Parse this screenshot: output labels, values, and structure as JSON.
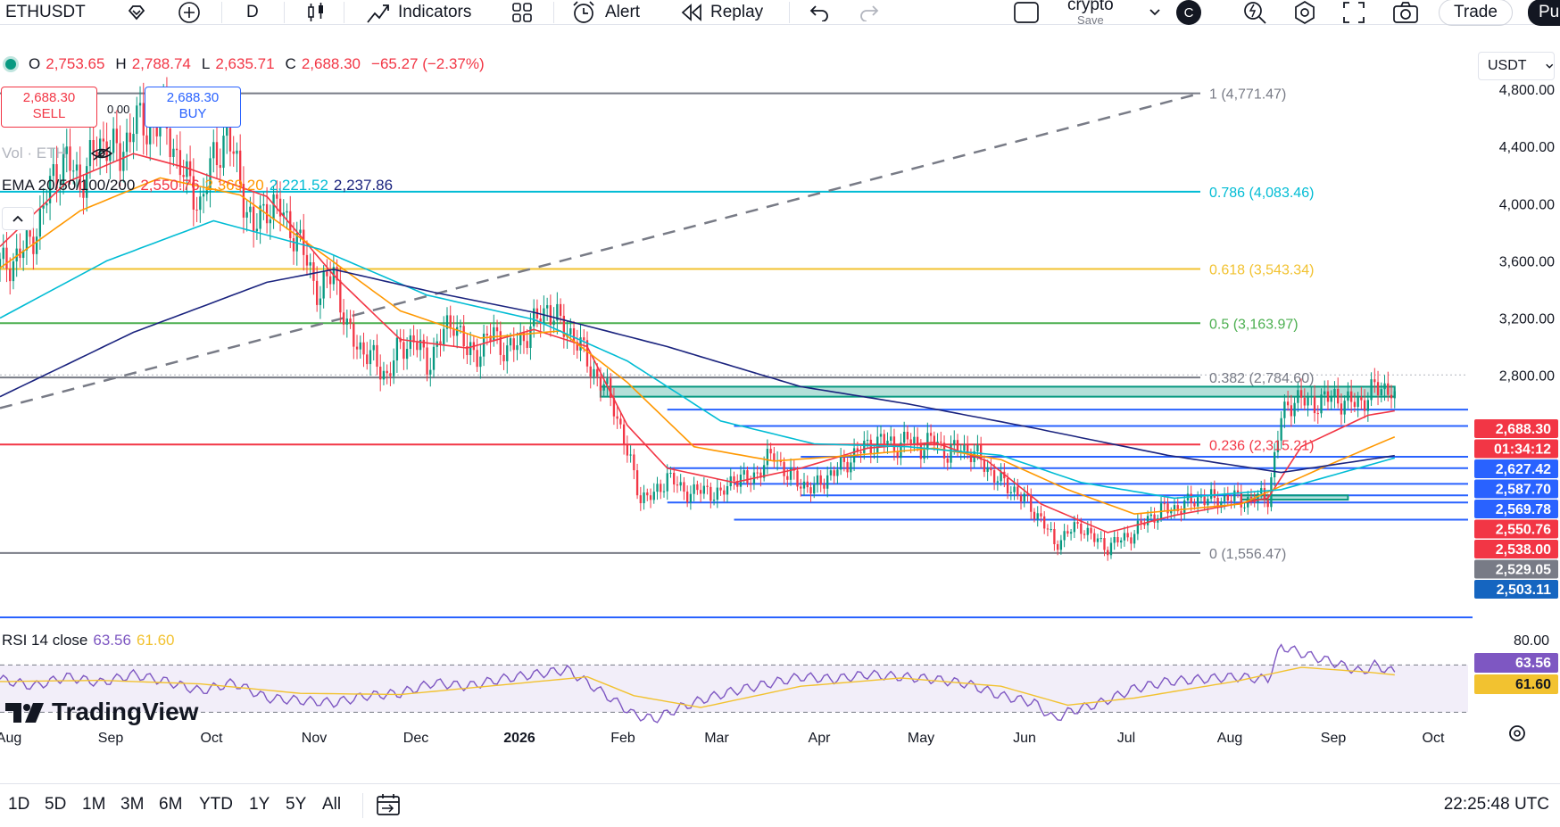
{
  "toolbar": {
    "symbol": "ETHUSDT",
    "interval": "D",
    "indicators_label": "Indicators",
    "alert_label": "Alert",
    "replay_label": "Replay",
    "layout_name": "crypto",
    "layout_status": "Save",
    "avatar_letter": "C",
    "trade_label": "Trade",
    "publish_label": "Pu"
  },
  "legend": {
    "ohlc": [
      {
        "key": "O",
        "value": "2,753.65"
      },
      {
        "key": "H",
        "value": "2,788.74"
      },
      {
        "key": "L",
        "value": "2,635.71"
      },
      {
        "key": "C",
        "value": "2,688.30"
      }
    ],
    "change": "−65.27 (−2.37%)",
    "vol_label": "Vol · ETH",
    "ema_label": "EMA 20/50/100/200",
    "ema_values": [
      {
        "value": "2,550.76",
        "color": "#f23645"
      },
      {
        "value": "2,369.20",
        "color": "#ff9800"
      },
      {
        "value": "2,221.52",
        "color": "#00bcd4"
      },
      {
        "value": "2,237.86",
        "color": "#1a237e"
      }
    ],
    "rsi_label": "RSI 14 close",
    "rsi_values": [
      {
        "value": "63.56",
        "color": "#7e57c2"
      },
      {
        "value": "61.60",
        "color": "#f2c230"
      }
    ]
  },
  "orders": {
    "sell_price": "2,688.30",
    "sell_label": "SELL",
    "spread": "0.00",
    "buy_price": "2,688.30",
    "buy_label": "BUY"
  },
  "currency": "USDT",
  "chart_data": {
    "type": "candlestick",
    "symbol": "ETHUSDT",
    "interval": "D",
    "y_axis": {
      "ticks": [
        4800,
        4400,
        4000,
        3600,
        3200,
        2800
      ],
      "tick_labels": [
        "4,800.00",
        "4,400.00",
        "4,000.00",
        "3,600.00",
        "3,200.00",
        "2,800.00"
      ],
      "range": [
        1400,
        4900
      ]
    },
    "x_axis": {
      "labels": [
        "Aug",
        "Sep",
        "Oct",
        "Nov",
        "Dec",
        "2026",
        "Feb",
        "Mar",
        "Apr",
        "May",
        "Jun",
        "Jul",
        "Aug",
        "Sep",
        "Oct"
      ]
    },
    "close_path": [
      [
        0,
        3560
      ],
      [
        4,
        3600
      ],
      [
        8,
        3700
      ],
      [
        12,
        3880
      ],
      [
        16,
        4200
      ],
      [
        20,
        4300
      ],
      [
        24,
        4150
      ],
      [
        28,
        4350
      ],
      [
        32,
        4450
      ],
      [
        36,
        4300
      ],
      [
        40,
        4600
      ],
      [
        44,
        4500
      ],
      [
        48,
        4620
      ],
      [
        52,
        4400
      ],
      [
        56,
        4150
      ],
      [
        60,
        4000
      ],
      [
        64,
        4300
      ],
      [
        68,
        4500
      ],
      [
        72,
        4150
      ],
      [
        76,
        3800
      ],
      [
        80,
        4000
      ],
      [
        84,
        3950
      ],
      [
        88,
        3800
      ],
      [
        92,
        3600
      ],
      [
        96,
        3350
      ],
      [
        100,
        3550
      ],
      [
        104,
        3100
      ],
      [
        108,
        3000
      ],
      [
        112,
        2900
      ],
      [
        116,
        2800
      ],
      [
        120,
        3000
      ],
      [
        124,
        3050
      ],
      [
        128,
        2880
      ],
      [
        132,
        3050
      ],
      [
        136,
        3200
      ],
      [
        140,
        2950
      ],
      [
        144,
        2980
      ],
      [
        148,
        3100
      ],
      [
        152,
        2950
      ],
      [
        156,
        3050
      ],
      [
        160,
        3150
      ],
      [
        164,
        3280
      ],
      [
        168,
        3150
      ],
      [
        172,
        3080
      ],
      [
        176,
        2900
      ],
      [
        180,
        2750
      ],
      [
        184,
        2600
      ],
      [
        188,
        2250
      ],
      [
        192,
        1950
      ],
      [
        196,
        1950
      ],
      [
        200,
        2100
      ],
      [
        204,
        2000
      ],
      [
        208,
        1980
      ],
      [
        212,
        2000
      ],
      [
        216,
        1950
      ],
      [
        220,
        2100
      ],
      [
        224,
        2050
      ],
      [
        228,
        2150
      ],
      [
        232,
        2250
      ],
      [
        236,
        2100
      ],
      [
        240,
        2050
      ],
      [
        244,
        2000
      ],
      [
        248,
        2100
      ],
      [
        252,
        2150
      ],
      [
        256,
        2250
      ],
      [
        260,
        2300
      ],
      [
        264,
        2350
      ],
      [
        268,
        2300
      ],
      [
        272,
        2350
      ],
      [
        276,
        2300
      ],
      [
        280,
        2350
      ],
      [
        284,
        2250
      ],
      [
        288,
        2300
      ],
      [
        292,
        2250
      ],
      [
        296,
        2150
      ],
      [
        300,
        2050
      ],
      [
        304,
        2000
      ],
      [
        308,
        1900
      ],
      [
        312,
        1800
      ],
      [
        316,
        1620
      ],
      [
        320,
        1700
      ],
      [
        324,
        1750
      ],
      [
        328,
        1650
      ],
      [
        332,
        1600
      ],
      [
        336,
        1650
      ],
      [
        340,
        1700
      ],
      [
        344,
        1800
      ],
      [
        348,
        1850
      ],
      [
        352,
        1870
      ],
      [
        356,
        1900
      ],
      [
        360,
        1950
      ],
      [
        364,
        1920
      ],
      [
        368,
        1950
      ],
      [
        372,
        1920
      ],
      [
        376,
        1940
      ],
      [
        380,
        1950
      ],
      [
        384,
        2500
      ],
      [
        388,
        2650
      ],
      [
        392,
        2600
      ],
      [
        396,
        2620
      ],
      [
        400,
        2650
      ],
      [
        404,
        2600
      ],
      [
        408,
        2620
      ],
      [
        412,
        2700
      ],
      [
        416,
        2720
      ],
      [
        418,
        2688.3
      ]
    ],
    "ema": [
      {
        "name": "EMA 20",
        "color": "#f23645",
        "points": [
          [
            0,
            3700
          ],
          [
            20,
            4150
          ],
          [
            40,
            4350
          ],
          [
            56,
            4250
          ],
          [
            80,
            4050
          ],
          [
            100,
            3500
          ],
          [
            120,
            3050
          ],
          [
            140,
            2990
          ],
          [
            160,
            3120
          ],
          [
            176,
            3000
          ],
          [
            188,
            2450
          ],
          [
            200,
            2150
          ],
          [
            220,
            2050
          ],
          [
            240,
            2150
          ],
          [
            260,
            2290
          ],
          [
            280,
            2330
          ],
          [
            296,
            2200
          ],
          [
            312,
            1900
          ],
          [
            332,
            1700
          ],
          [
            352,
            1820
          ],
          [
            380,
            1940
          ],
          [
            390,
            2300
          ],
          [
            410,
            2520
          ],
          [
            418,
            2550.76
          ]
        ]
      },
      {
        "name": "EMA 50",
        "color": "#ff9800",
        "points": [
          [
            0,
            3550
          ],
          [
            24,
            3950
          ],
          [
            48,
            4180
          ],
          [
            72,
            4060
          ],
          [
            96,
            3660
          ],
          [
            120,
            3250
          ],
          [
            144,
            3060
          ],
          [
            168,
            3110
          ],
          [
            188,
            2750
          ],
          [
            208,
            2300
          ],
          [
            232,
            2200
          ],
          [
            256,
            2240
          ],
          [
            280,
            2290
          ],
          [
            300,
            2210
          ],
          [
            320,
            2000
          ],
          [
            340,
            1830
          ],
          [
            372,
            1900
          ],
          [
            396,
            2150
          ],
          [
            418,
            2369.2
          ]
        ]
      },
      {
        "name": "EMA 100",
        "color": "#00bcd4",
        "points": [
          [
            0,
            3200
          ],
          [
            32,
            3600
          ],
          [
            64,
            3880
          ],
          [
            96,
            3680
          ],
          [
            128,
            3360
          ],
          [
            160,
            3190
          ],
          [
            188,
            2900
          ],
          [
            216,
            2480
          ],
          [
            244,
            2320
          ],
          [
            272,
            2300
          ],
          [
            300,
            2240
          ],
          [
            324,
            2050
          ],
          [
            352,
            1940
          ],
          [
            384,
            2000
          ],
          [
            418,
            2221.52
          ]
        ]
      },
      {
        "name": "EMA 200",
        "color": "#1a237e",
        "points": [
          [
            0,
            2650
          ],
          [
            40,
            3100
          ],
          [
            80,
            3450
          ],
          [
            100,
            3540
          ],
          [
            130,
            3380
          ],
          [
            160,
            3240
          ],
          [
            200,
            3000
          ],
          [
            240,
            2720
          ],
          [
            272,
            2600
          ],
          [
            310,
            2430
          ],
          [
            350,
            2240
          ],
          [
            384,
            2120
          ],
          [
            418,
            2237.86
          ]
        ]
      }
    ],
    "fib": {
      "base": "1,556.47",
      "levels": [
        {
          "ratio": "1",
          "price": "4,771.47",
          "value": 4771.47,
          "color": "#787b86"
        },
        {
          "ratio": "0.786",
          "price": "4,083.46",
          "value": 4083.46,
          "color": "#00bcd4"
        },
        {
          "ratio": "0.618",
          "price": "3,543.34",
          "value": 3543.34,
          "color": "#f2c230"
        },
        {
          "ratio": "0.5",
          "price": "3,163.97",
          "value": 3163.97,
          "color": "#4caf50"
        },
        {
          "ratio": "0.382",
          "price": "2,784.60",
          "value": 2784.6,
          "color": "#787b86"
        },
        {
          "ratio": "0.236",
          "price": "2,315.21",
          "value": 2315.21,
          "color": "#f23645"
        },
        {
          "ratio": "0",
          "price": "1,556.47",
          "value": 1556.47,
          "color": "#787b86"
        }
      ]
    },
    "zones": [
      {
        "from": 188,
        "to": 418,
        "low": 2650,
        "high": 2720,
        "color": "#089981"
      },
      {
        "from": 380,
        "to": 404,
        "low": 1930,
        "high": 1960,
        "color": "#089981"
      }
    ],
    "hlines_blue": [
      2560,
      2445,
      2230,
      2150,
      2040,
      1960,
      1910,
      1790
    ],
    "price_labels": [
      {
        "text": "2,688.30",
        "bg": "#f23645",
        "fg": "#ffffff"
      },
      {
        "text": "01:34:12",
        "bg": "#f23645",
        "fg": "#ffffff"
      },
      {
        "text": "2,627.42",
        "bg": "#2962ff",
        "fg": "#ffffff"
      },
      {
        "text": "2,587.70",
        "bg": "#2962ff",
        "fg": "#ffffff"
      },
      {
        "text": "2,569.78",
        "bg": "#2962ff",
        "fg": "#ffffff"
      },
      {
        "text": "2,550.76",
        "bg": "#f23645",
        "fg": "#ffffff"
      },
      {
        "text": "2,538.00",
        "bg": "#f23645",
        "fg": "#ffffff"
      },
      {
        "text": "2,529.05",
        "bg": "#787b86",
        "fg": "#ffffff"
      },
      {
        "text": "2,503.11",
        "bg": "#1565c0",
        "fg": "#ffffff"
      }
    ],
    "rsi": {
      "axis_labels": [
        "80.00"
      ],
      "upper": 70,
      "lower": 30,
      "current": 63.56,
      "ma": 61.6,
      "current_label": "63.56",
      "ma_label": "61.60",
      "points": [
        [
          0,
          58
        ],
        [
          10,
          52
        ],
        [
          20,
          60
        ],
        [
          30,
          55
        ],
        [
          40,
          62
        ],
        [
          50,
          56
        ],
        [
          60,
          48
        ],
        [
          70,
          55
        ],
        [
          80,
          42
        ],
        [
          90,
          40
        ],
        [
          100,
          38
        ],
        [
          110,
          44
        ],
        [
          120,
          46
        ],
        [
          130,
          55
        ],
        [
          140,
          52
        ],
        [
          150,
          58
        ],
        [
          160,
          62
        ],
        [
          170,
          66
        ],
        [
          176,
          55
        ],
        [
          184,
          40
        ],
        [
          190,
          28
        ],
        [
          196,
          24
        ],
        [
          204,
          34
        ],
        [
          212,
          42
        ],
        [
          220,
          48
        ],
        [
          230,
          54
        ],
        [
          240,
          60
        ],
        [
          250,
          58
        ],
        [
          260,
          62
        ],
        [
          270,
          60
        ],
        [
          280,
          58
        ],
        [
          290,
          54
        ],
        [
          300,
          44
        ],
        [
          310,
          38
        ],
        [
          316,
          24
        ],
        [
          320,
          30
        ],
        [
          330,
          38
        ],
        [
          340,
          50
        ],
        [
          350,
          56
        ],
        [
          360,
          58
        ],
        [
          370,
          60
        ],
        [
          380,
          58
        ],
        [
          384,
          86
        ],
        [
          390,
          80
        ],
        [
          400,
          72
        ],
        [
          408,
          64
        ],
        [
          412,
          70
        ],
        [
          418,
          63.56
        ]
      ],
      "ma_points": [
        [
          0,
          56
        ],
        [
          30,
          57
        ],
        [
          60,
          54
        ],
        [
          90,
          46
        ],
        [
          120,
          45
        ],
        [
          150,
          53
        ],
        [
          176,
          60
        ],
        [
          190,
          44
        ],
        [
          210,
          34
        ],
        [
          240,
          52
        ],
        [
          270,
          59
        ],
        [
          300,
          52
        ],
        [
          320,
          36
        ],
        [
          340,
          42
        ],
        [
          370,
          56
        ],
        [
          390,
          68
        ],
        [
          410,
          64
        ],
        [
          418,
          61.6
        ]
      ]
    }
  },
  "bottombar": {
    "ranges": [
      "1D",
      "5D",
      "1M",
      "3M",
      "6M",
      "YTD",
      "1Y",
      "5Y",
      "All"
    ],
    "time": "22:25:48 UTC"
  },
  "brand": "TradingView",
  "colors": {
    "up": "#089981",
    "down": "#f23645",
    "accent": "#2962ff"
  }
}
